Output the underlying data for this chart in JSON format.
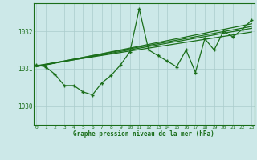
{
  "title": "Graphe pression niveau de la mer (hPa)",
  "bg_color": "#cce8e8",
  "line_color": "#1a6e1a",
  "grid_color": "#aacccc",
  "x_ticks": [
    0,
    1,
    2,
    3,
    4,
    5,
    6,
    7,
    8,
    9,
    10,
    11,
    12,
    13,
    14,
    15,
    16,
    17,
    18,
    19,
    20,
    21,
    22,
    23
  ],
  "y_ticks": [
    1030,
    1031,
    1032
  ],
  "ylim": [
    1029.5,
    1032.75
  ],
  "xlim": [
    -0.3,
    23.3
  ],
  "data_x": [
    0,
    1,
    2,
    3,
    4,
    5,
    6,
    7,
    8,
    9,
    10,
    11,
    12,
    13,
    14,
    15,
    16,
    17,
    18,
    19,
    20,
    21,
    22,
    23
  ],
  "data_y": [
    1031.1,
    1031.05,
    1030.85,
    1030.55,
    1030.55,
    1030.38,
    1030.3,
    1030.62,
    1030.82,
    1031.1,
    1031.45,
    1032.6,
    1031.5,
    1031.35,
    1031.2,
    1031.05,
    1031.5,
    1030.9,
    1031.8,
    1031.5,
    1032.0,
    1031.85,
    1032.05,
    1032.3
  ],
  "trend_x_start": 0,
  "trend_x_end": 23,
  "trend_lines": [
    [
      1031.05,
      1032.2
    ],
    [
      1031.08,
      1031.98
    ],
    [
      1031.06,
      1032.08
    ],
    [
      1031.07,
      1032.13
    ]
  ]
}
